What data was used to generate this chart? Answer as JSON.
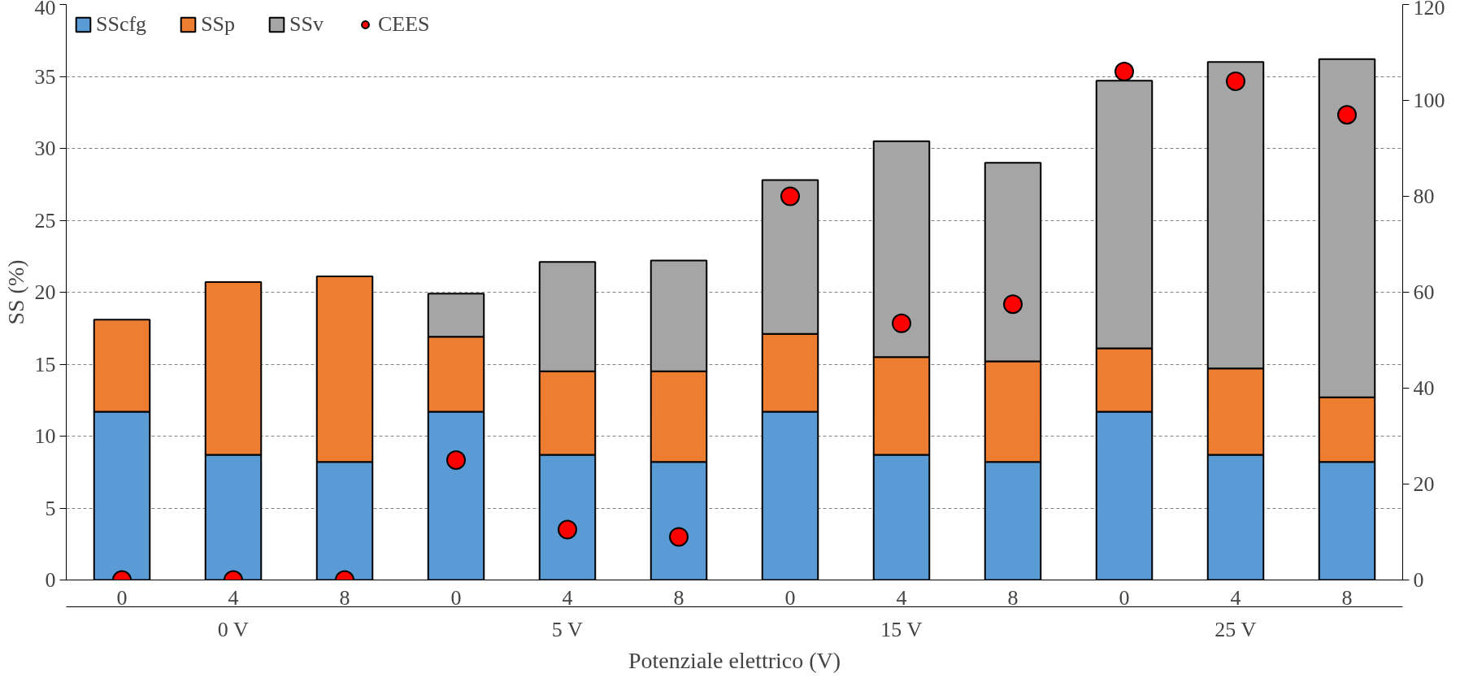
{
  "chart_data": {
    "type": "bar",
    "stacked": true,
    "categories": [
      "0",
      "4",
      "8",
      "0",
      "4",
      "8",
      "0",
      "4",
      "8",
      "0",
      "4",
      "8"
    ],
    "xlabel": "Potenziale elettrico (V)",
    "ylabel": "SS (%)",
    "annotations": [
      "0 V",
      "5 V",
      "15 V",
      "25 V"
    ],
    "series": [
      {
        "name": "SScfg",
        "color": "#5b9bd5",
        "values": [
          11.7,
          8.7,
          8.2,
          11.7,
          8.7,
          8.2,
          11.7,
          8.7,
          8.2,
          11.7,
          8.7,
          8.2
        ]
      },
      {
        "name": "SSp",
        "color": "#ed7d31",
        "values": [
          6.4,
          12.0,
          12.9,
          5.2,
          5.8,
          6.3,
          5.4,
          6.8,
          7.0,
          4.4,
          6.0,
          4.5
        ]
      },
      {
        "name": "SSv",
        "color": "#a5a5a5",
        "values": [
          null,
          null,
          null,
          3.0,
          7.6,
          7.7,
          10.7,
          15.0,
          13.8,
          18.6,
          21.3,
          23.5
        ]
      },
      {
        "name": "CEES",
        "color": "#ff0000",
        "type": "scatter",
        "axis": "y2",
        "values": [
          0,
          0,
          0,
          25,
          10.5,
          9,
          80,
          53.5,
          57.5,
          106,
          104,
          97
        ]
      }
    ],
    "ylim": [
      0,
      40
    ],
    "yticks": [
      0,
      5,
      10,
      15,
      20,
      25,
      30,
      35,
      40
    ],
    "y2lim": [
      0,
      120
    ],
    "y2ticks": [
      0,
      20,
      40,
      60,
      80,
      100,
      120
    ],
    "grid": "y",
    "legend": "top left",
    "marker": "circle"
  }
}
